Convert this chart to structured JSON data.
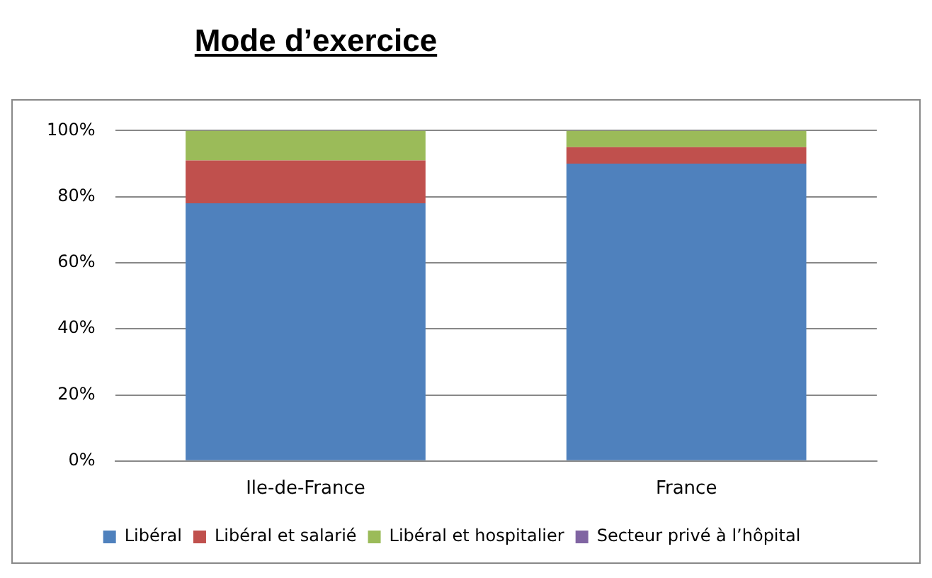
{
  "chart_data": {
    "type": "bar",
    "title": "Mode d’exercice",
    "categories": [
      "Ile-de-France",
      "France"
    ],
    "stacked": true,
    "series": [
      {
        "name": "Libéral",
        "color": "#4f81bd",
        "values": [
          78,
          90
        ]
      },
      {
        "name": "Libéral et salarié",
        "color": "#c0504d",
        "values": [
          13,
          5
        ]
      },
      {
        "name": "Libéral et hospitalier",
        "color": "#9bbb59",
        "values": [
          9,
          5
        ]
      },
      {
        "name": "Secteur privé à l’hôpital",
        "color": "#8064a2",
        "values": [
          0,
          0
        ]
      }
    ],
    "ylim": [
      0,
      100
    ],
    "yticks": [
      {
        "value": 0,
        "label": "0%"
      },
      {
        "value": 20,
        "label": "20%"
      },
      {
        "value": 40,
        "label": "40%"
      },
      {
        "value": 60,
        "label": "60%"
      },
      {
        "value": 80,
        "label": "80%"
      },
      {
        "value": 100,
        "label": "100%"
      }
    ],
    "grid": "y",
    "legend": "bottom"
  }
}
